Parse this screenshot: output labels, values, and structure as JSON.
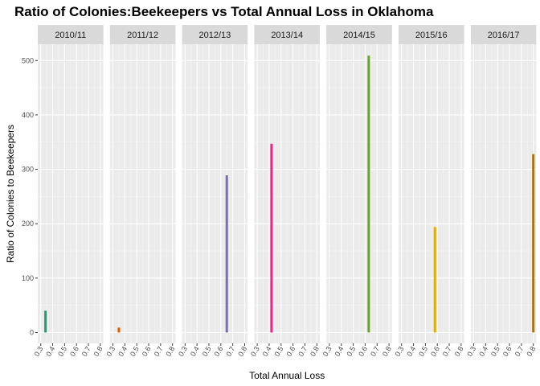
{
  "chart_data": {
    "type": "bar",
    "title": "Ratio of Colonies:Beekeepers vs Total Annual Loss in Oklahoma",
    "xlabel": "Total Annual Loss",
    "ylabel": "Ratio of Colonies to Beekeepers",
    "facet_by": "season",
    "facets": [
      {
        "label": "2010/11",
        "x": 0.34,
        "y": 40,
        "color": "#1b9e77"
      },
      {
        "label": "2011/12",
        "x": 0.35,
        "y": 9,
        "color": "#d95f02"
      },
      {
        "label": "2012/13",
        "x": 0.65,
        "y": 289,
        "color": "#7570b3"
      },
      {
        "label": "2013/14",
        "x": 0.42,
        "y": 347,
        "color": "#e7298a"
      },
      {
        "label": "2014/15",
        "x": 0.63,
        "y": 509,
        "color": "#66a61e"
      },
      {
        "label": "2015/16",
        "x": 0.58,
        "y": 194,
        "color": "#e6ab02"
      },
      {
        "label": "2016/17",
        "x": 0.8,
        "y": 328,
        "color": "#a6761d"
      }
    ],
    "x_ticks": [
      "0.3",
      "0.4",
      "0.5",
      "0.6",
      "0.7",
      "0.8"
    ],
    "x_tick_values": [
      0.3,
      0.4,
      0.5,
      0.6,
      0.7,
      0.8
    ],
    "y_ticks": [
      "0",
      "100",
      "200",
      "300",
      "400",
      "500"
    ],
    "y_tick_values": [
      0,
      100,
      200,
      300,
      400,
      500
    ],
    "xlim": [
      0.275,
      0.825
    ],
    "ylim": [
      -20,
      530
    ],
    "grid": true,
    "legend": "none"
  }
}
